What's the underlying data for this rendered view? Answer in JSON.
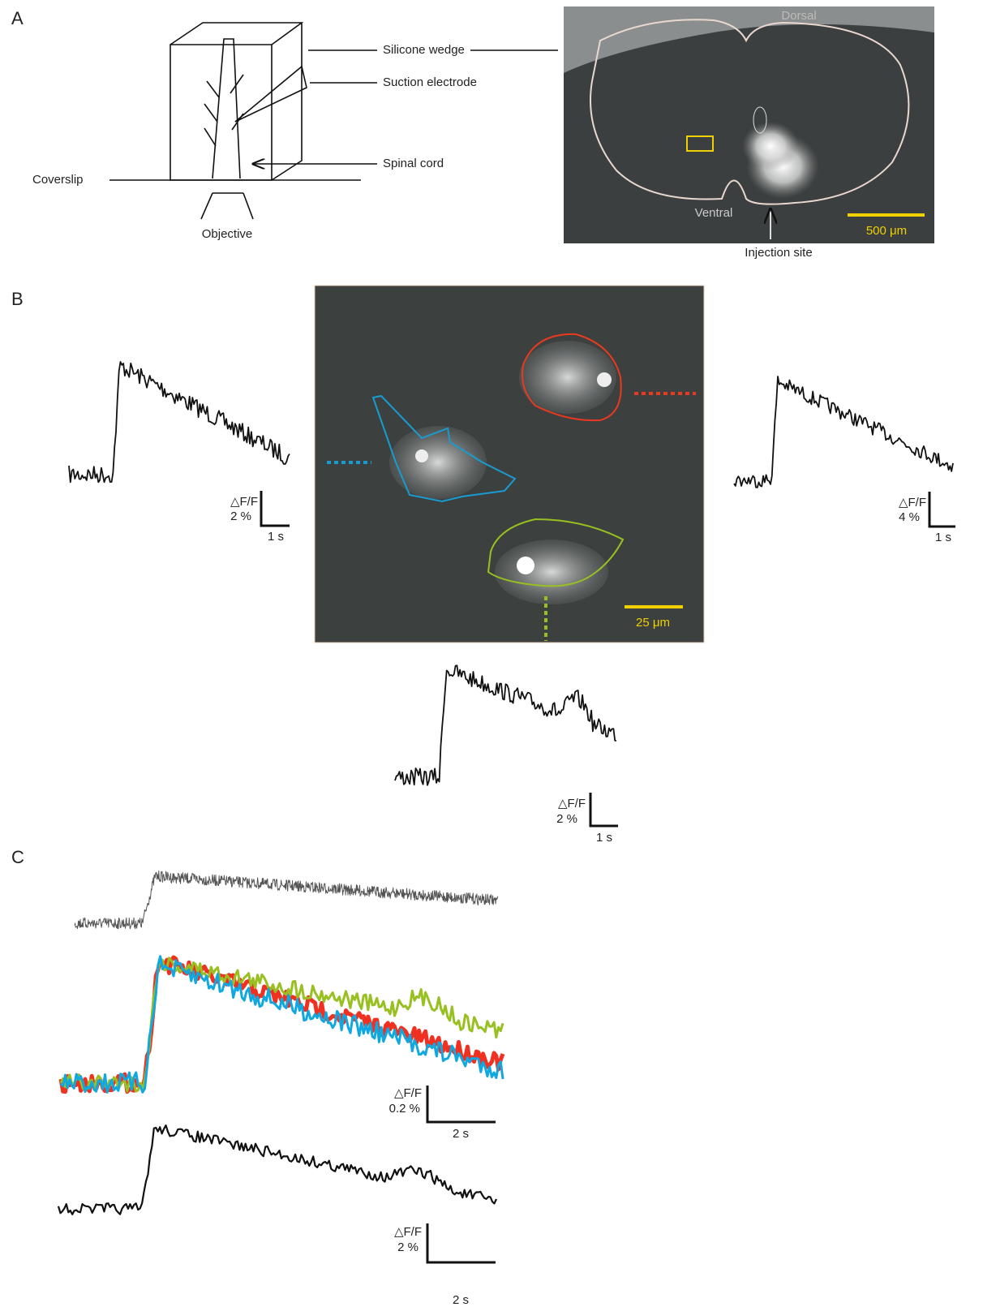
{
  "panel_a": {
    "label": "A",
    "schematic": {
      "silicone_wedge": "Silicone wedge",
      "suction_electrode": "Suction electrode",
      "spinal_cord": "Spinal cord",
      "coverslip": "Coverslip",
      "objective": "Objective"
    },
    "image": {
      "dorsal": "Dorsal",
      "ventral": "Ventral",
      "injection_site": "Injection site",
      "scale_bar": "500 μm"
    }
  },
  "panel_b": {
    "label": "B",
    "image": {
      "scale_bar": "25 μm"
    },
    "scale_bars": [
      {
        "quantity": "△F/F",
        "amplitude": "2 %",
        "time": "1 s"
      },
      {
        "quantity": "△F/F",
        "amplitude": "4 %",
        "time": "1 s"
      },
      {
        "quantity": "△F/F",
        "amplitude": "2 %",
        "time": "1 s"
      }
    ]
  },
  "panel_c": {
    "label": "C",
    "scale_bars": [
      {
        "quantity": "△F/F",
        "amplitude": "0.2 %",
        "time": "2 s"
      },
      {
        "quantity": "△F/F",
        "amplitude": "2 %",
        "time": "2 s"
      }
    ]
  }
}
